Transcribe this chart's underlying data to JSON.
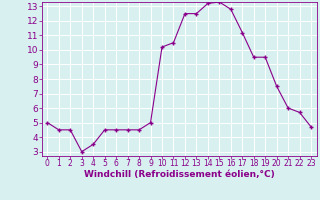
{
  "x": [
    0,
    1,
    2,
    3,
    4,
    5,
    6,
    7,
    8,
    9,
    10,
    11,
    12,
    13,
    14,
    15,
    16,
    17,
    18,
    19,
    20,
    21,
    22,
    23
  ],
  "y": [
    5.0,
    4.5,
    4.5,
    3.0,
    3.5,
    4.5,
    4.5,
    4.5,
    4.5,
    5.0,
    10.2,
    10.5,
    12.5,
    12.5,
    13.2,
    13.3,
    12.8,
    11.2,
    9.5,
    9.5,
    7.5,
    6.0,
    5.7,
    4.7
  ],
  "line_color": "#8B008B",
  "marker": "+",
  "marker_color": "#8B008B",
  "xlabel": "Windchill (Refroidissement éolien,°C)",
  "xlabel_color": "#8B008B",
  "background_color": "#d8f0f0",
  "grid_color": "#ffffff",
  "tick_color": "#8B008B",
  "spine_color": "#8B008B",
  "ylim_min": 2.7,
  "ylim_max": 13.3,
  "yticks": [
    3,
    4,
    5,
    6,
    7,
    8,
    9,
    10,
    11,
    12,
    13
  ],
  "xlim_min": -0.5,
  "xlim_max": 23.5,
  "xticks": [
    0,
    1,
    2,
    3,
    4,
    5,
    6,
    7,
    8,
    9,
    10,
    11,
    12,
    13,
    14,
    15,
    16,
    17,
    18,
    19,
    20,
    21,
    22,
    23
  ],
  "xlabel_fontsize": 6.5,
  "ytick_fontsize": 6.5,
  "xtick_fontsize": 5.5
}
